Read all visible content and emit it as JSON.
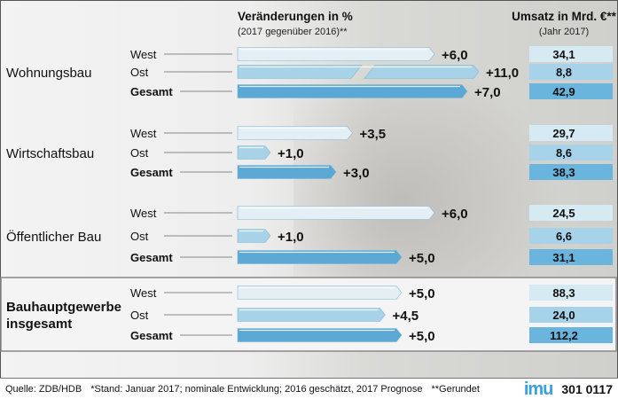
{
  "chart_data": {
    "type": "bar",
    "title": "Veränderungen in %",
    "subtitle": "(2017 gegenüber 2016)**",
    "value_column_title": "Umsatz in Mrd. €**",
    "value_column_subtitle": "(Jahr 2017)",
    "series_labels": [
      "West",
      "Ost",
      "Gesamt"
    ],
    "groups": [
      {
        "name": "Wohnungsbau",
        "changes": [
          6.0,
          11.0,
          7.0
        ],
        "change_labels": [
          "+6,0",
          "+11,0",
          "+7,0"
        ],
        "umsatz": [
          "34,1",
          "8,8",
          "42,9"
        ],
        "broken_bar": [
          false,
          true,
          false
        ]
      },
      {
        "name": "Wirtschaftsbau",
        "changes": [
          3.5,
          1.0,
          3.0
        ],
        "change_labels": [
          "+3,5",
          "+1,0",
          "+3,0"
        ],
        "umsatz": [
          "29,7",
          "8,6",
          "38,3"
        ],
        "broken_bar": [
          false,
          false,
          false
        ]
      },
      {
        "name": "Öffentlicher Bau",
        "changes": [
          6.0,
          1.0,
          5.0
        ],
        "change_labels": [
          "+6,0",
          "+1,0",
          "+5,0"
        ],
        "umsatz": [
          "24,5",
          "6,6",
          "31,1"
        ],
        "broken_bar": [
          false,
          false,
          false
        ]
      },
      {
        "name": "Bauhauptgewerbe insgesamt",
        "name_lines": [
          "Bauhauptgewerbe",
          "insgesamt"
        ],
        "changes": [
          5.0,
          4.5,
          5.0
        ],
        "change_labels": [
          "+5,0",
          "+4,5",
          "+5,0"
        ],
        "umsatz": [
          "88,3",
          "24,0",
          "112,2"
        ],
        "broken_bar": [
          false,
          false,
          false
        ]
      }
    ],
    "colors": {
      "West": "#e3eff5",
      "Ost": "#a8d2e7",
      "Gesamt": "#5ba8d5"
    }
  },
  "footer": {
    "source": "Quelle: ZDB/HDB",
    "note": "*Stand: Januar 2017; nominale Entwicklung; 2016 geschätzt, 2017 Prognose",
    "note2": "**Gerundet",
    "logo": "imu",
    "code": "301 0117"
  }
}
